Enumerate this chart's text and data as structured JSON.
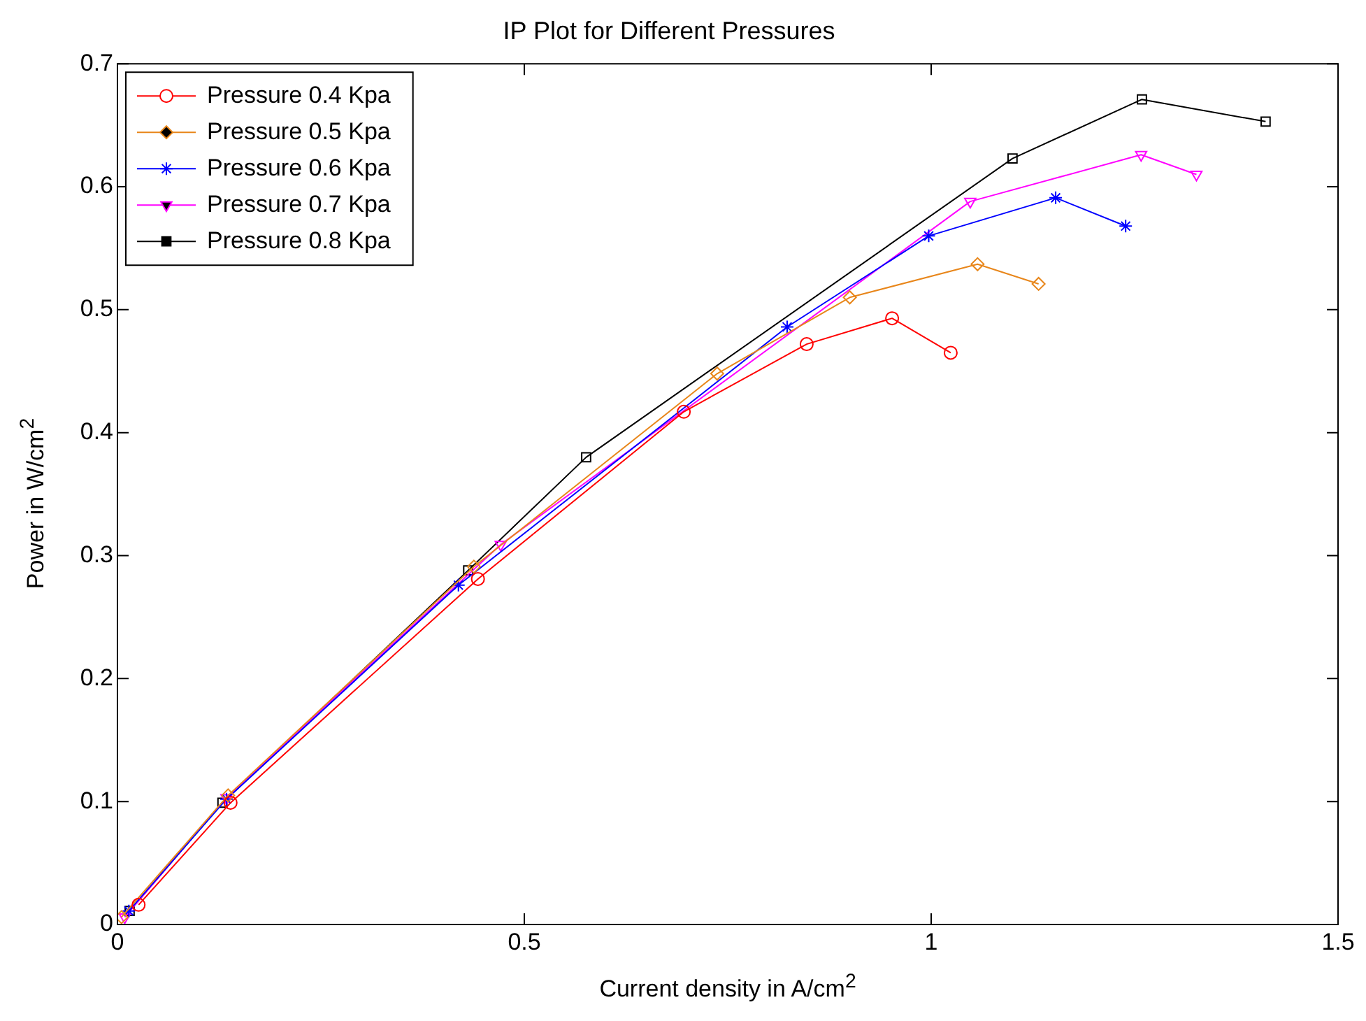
{
  "chart_data": {
    "type": "line",
    "title": "IP Plot for Different Pressures",
    "xlabel": "Current density in A/cm$^{2}$",
    "ylabel": "Power in W/cm$^{2}$",
    "xlim": [
      0,
      1.5
    ],
    "xticks": [
      0,
      0.5,
      1,
      1.5
    ],
    "ylim": [
      0,
      0.7
    ],
    "yticks": [
      0,
      0.1,
      0.2,
      0.3,
      0.4,
      0.5,
      0.6,
      0.7
    ],
    "grid": false,
    "legend": "top left",
    "line_style": "solid",
    "series": [
      {
        "name": "Pressure 0.4 Kpa",
        "color": "#ff0000",
        "marker": "circle",
        "x": [
          0.026,
          0.139,
          0.443,
          0.696,
          0.847,
          0.952,
          1.024
        ],
        "values": [
          0.016,
          0.099,
          0.281,
          0.417,
          0.472,
          0.493,
          0.465
        ]
      },
      {
        "name": "Pressure 0.5 Kpa",
        "color": "#e8861a",
        "marker": "diamond",
        "x": [
          0.005,
          0.136,
          0.438,
          0.737,
          0.9,
          1.057,
          1.132
        ],
        "values": [
          0.006,
          0.105,
          0.291,
          0.448,
          0.51,
          0.537,
          0.521
        ]
      },
      {
        "name": "Pressure 0.6 Kpa",
        "color": "#0000ff",
        "marker": "cross",
        "x": [
          0.014,
          0.134,
          0.419,
          0.823,
          0.997,
          1.153,
          1.239
        ],
        "values": [
          0.011,
          0.102,
          0.276,
          0.486,
          0.56,
          0.591,
          0.568
        ]
      },
      {
        "name": "Pressure 0.7 Kpa",
        "color": "#ff00ff",
        "marker": "triangle",
        "x": [
          0.009,
          0.134,
          0.471,
          1.048,
          1.258,
          1.326
        ],
        "values": [
          0.006,
          0.103,
          0.309,
          0.588,
          0.626,
          0.61
        ]
      },
      {
        "name": "Pressure 0.8 Kpa",
        "color": "#000000",
        "marker": "square",
        "x": [
          0.015,
          0.129,
          0.431,
          0.576,
          1.1,
          1.259,
          1.411
        ],
        "values": [
          0.011,
          0.099,
          0.288,
          0.38,
          0.623,
          0.671,
          0.653
        ]
      }
    ]
  }
}
